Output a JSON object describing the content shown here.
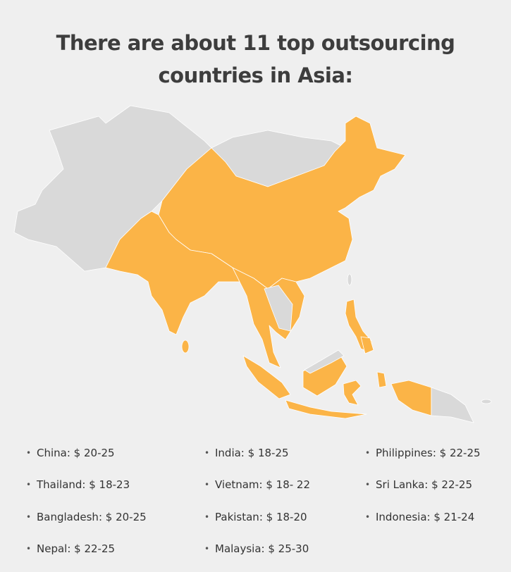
{
  "title": [
    "There are about 11 top outsourcing",
    "countries in Asia:"
  ],
  "columns": [
    [
      "China: $ 20-25",
      "Thailand: $ 18-23",
      "Bangladesh: $ 20-25",
      "Nepal: $ 22-25"
    ],
    [
      "India: $ 18-25",
      "Vietnam: $ 18- 22",
      "Pakistan: $ 18-20",
      "Malaysia: $ 25-30"
    ],
    [
      "Philippines: $ 22-25",
      "Sri Lanka: $ 22-25",
      "Indonesia: $ 21-24"
    ]
  ]
}
